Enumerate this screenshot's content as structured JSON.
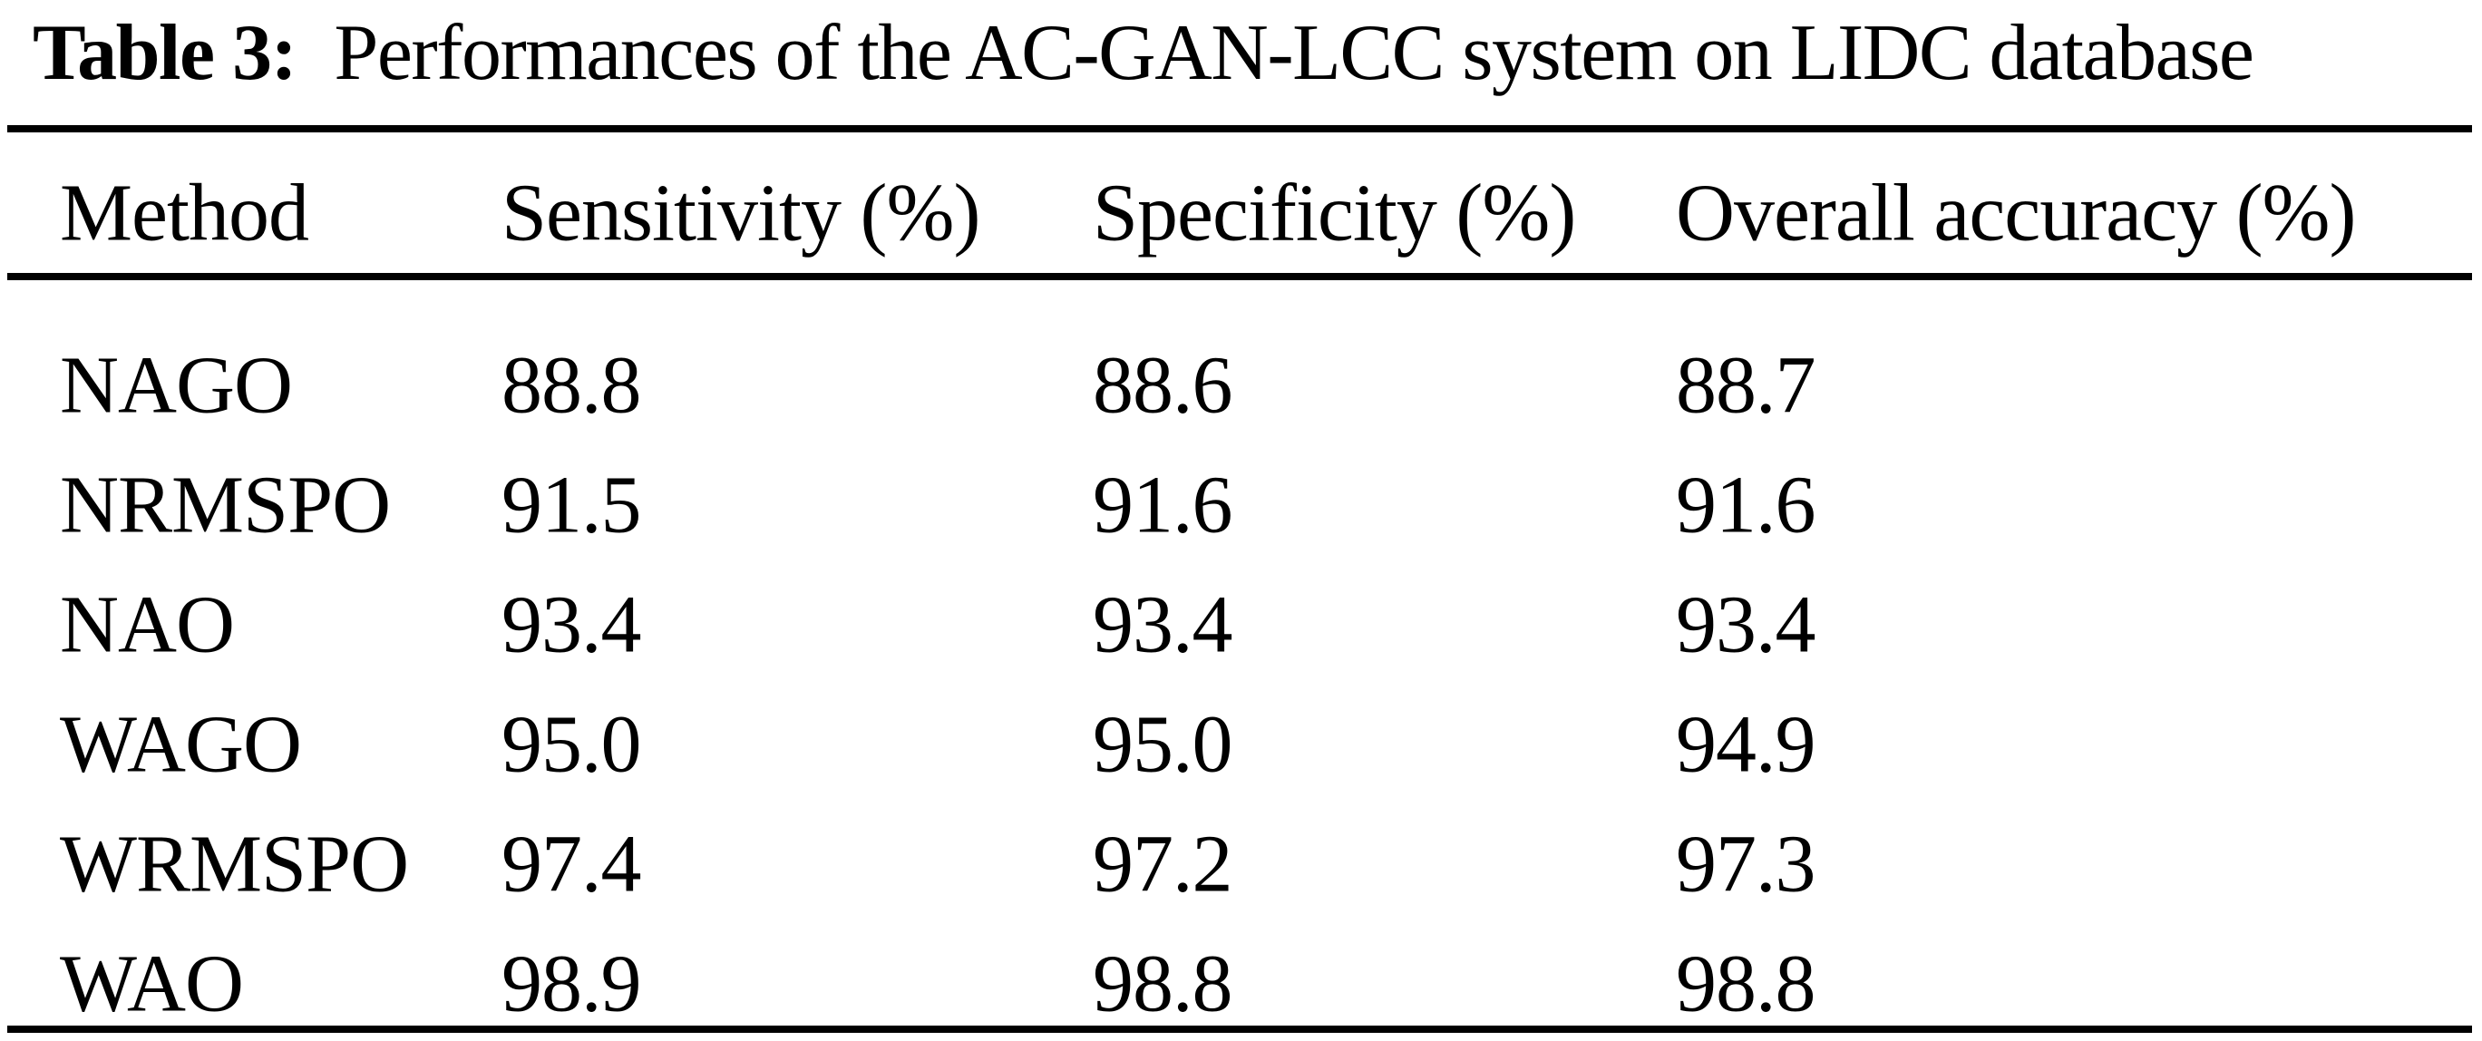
{
  "caption": {
    "label": "Table 3:",
    "text": "Performances of the AC-GAN-LCC system on LIDC database"
  },
  "table": {
    "columns": [
      "Method",
      "Sensitivity (%)",
      "Specificity (%)",
      "Overall accuracy (%)"
    ],
    "rows": [
      [
        "NAGO",
        "88.8",
        "88.6",
        "88.7"
      ],
      [
        "NRMSPO",
        "91.5",
        "91.6",
        "91.6"
      ],
      [
        "NAO",
        "93.4",
        "93.4",
        "93.4"
      ],
      [
        "WAGO",
        "95.0",
        "95.0",
        "94.9"
      ],
      [
        "WRMSPO",
        "97.4",
        "97.2",
        "97.3"
      ],
      [
        "WAO",
        "98.9",
        "98.8",
        "98.8"
      ]
    ]
  },
  "chart_data": {
    "type": "table",
    "title": "Table 3: Performances of the AC-GAN-LCC system on LIDC database",
    "columns": [
      "Method",
      "Sensitivity (%)",
      "Specificity (%)",
      "Overall accuracy (%)"
    ],
    "series": [
      {
        "name": "Sensitivity (%)",
        "values": [
          88.8,
          91.5,
          93.4,
          95.0,
          97.4,
          98.9
        ]
      },
      {
        "name": "Specificity (%)",
        "values": [
          88.6,
          91.6,
          93.4,
          95.0,
          97.2,
          98.8
        ]
      },
      {
        "name": "Overall accuracy (%)",
        "values": [
          88.7,
          91.6,
          93.4,
          94.9,
          97.3,
          98.8
        ]
      }
    ],
    "categories": [
      "NAGO",
      "NRMSPO",
      "NAO",
      "WAGO",
      "WRMSPO",
      "WAO"
    ]
  },
  "colors": {
    "text": "#000000",
    "background": "#ffffff",
    "rule": "#000000"
  }
}
